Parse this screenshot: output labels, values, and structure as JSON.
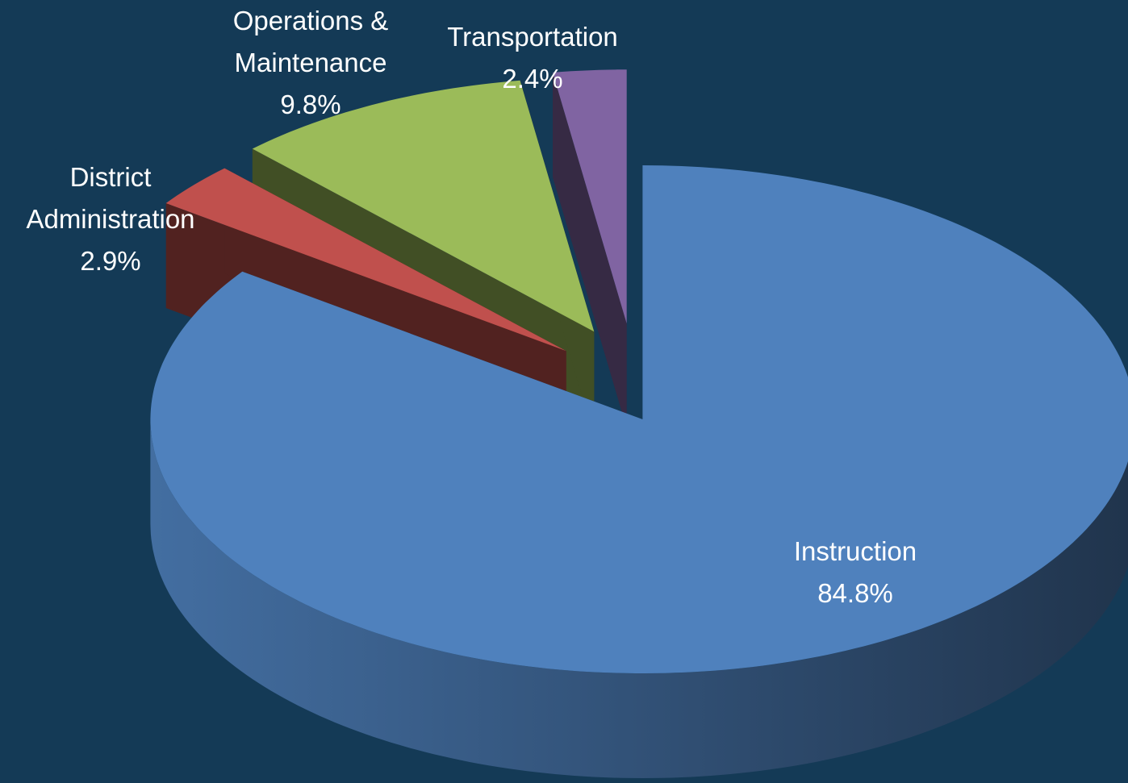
{
  "chart_data": {
    "type": "pie",
    "categories": [
      "Instruction",
      "District Administration",
      "Operations & Maintenance",
      "Transportation"
    ],
    "values": [
      84.8,
      2.9,
      9.8,
      2.4
    ],
    "value_labels": [
      "84.8%",
      "2.9%",
      "9.8%",
      "2.4%"
    ],
    "colors": [
      "#4f81bd",
      "#c0504d",
      "#9bbb59",
      "#8064a2"
    ]
  }
}
